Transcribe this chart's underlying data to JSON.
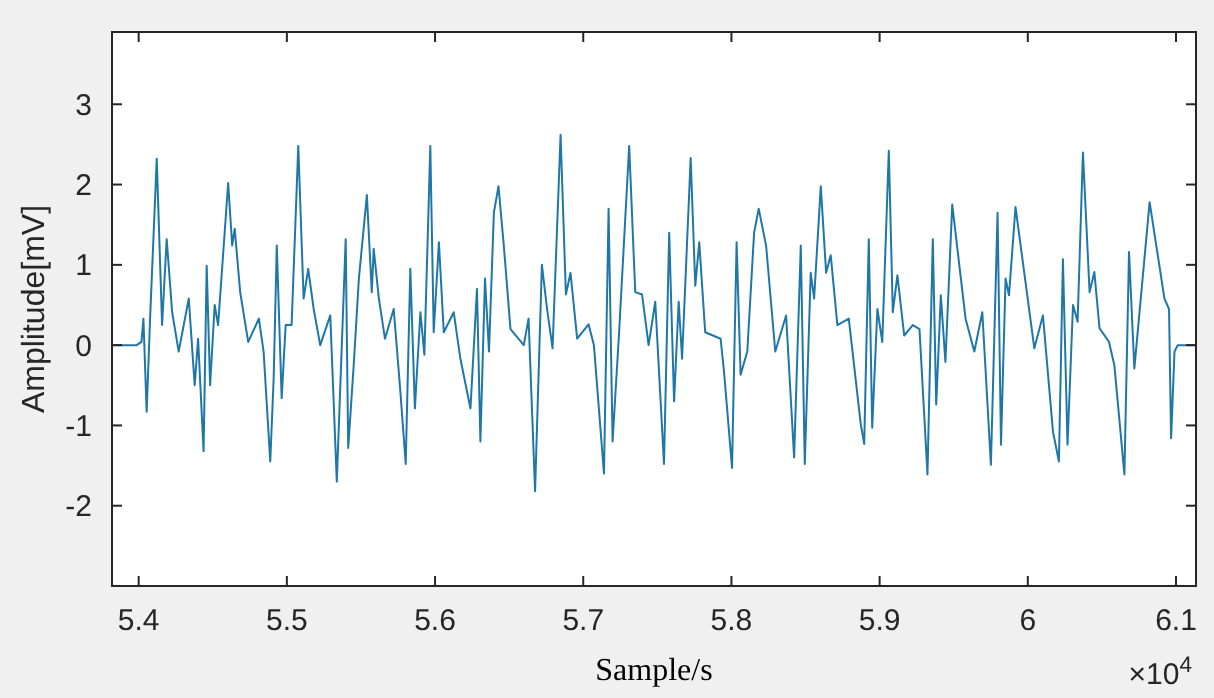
{
  "chart_data": {
    "type": "line",
    "xlabel": "Sample/s",
    "ylabel": "Amplitude[mV]",
    "annotations": [
      "×10$^{4}$"
    ],
    "xlim": [
      5.382,
      6.1135
    ],
    "ylim": [
      -3,
      3.9
    ],
    "xticks": [
      5.4,
      5.5,
      5.6,
      5.7,
      5.8,
      5.9,
      6,
      6.1
    ],
    "yticks": [
      -2,
      -1,
      0,
      1,
      2,
      3
    ],
    "grid": false,
    "marker": "none",
    "line_style": "solid",
    "series": [
      {
        "color": "#1f77a8",
        "x": [
          5.383,
          5.3986,
          5.4019,
          5.4032,
          5.4054,
          5.4077,
          5.4122,
          5.4158,
          5.4189,
          5.4226,
          5.427,
          5.4338,
          5.4378,
          5.4401,
          5.4438,
          5.4459,
          5.4482,
          5.4513,
          5.4536,
          5.4604,
          5.4631,
          5.4648,
          5.4685,
          5.4739,
          5.4811,
          5.4843,
          5.4888,
          5.4911,
          5.4932,
          5.4965,
          5.4992,
          5.5032,
          5.5077,
          5.5113,
          5.5144,
          5.5181,
          5.5225,
          5.5293,
          5.5337,
          5.5397,
          5.5414,
          5.5451,
          5.5486,
          5.554,
          5.5573,
          5.5586,
          5.5621,
          5.5662,
          5.5721,
          5.5766,
          5.5802,
          5.5833,
          5.5864,
          5.5901,
          5.5928,
          5.5968,
          5.5991,
          5.6026,
          5.6059,
          5.6126,
          5.6171,
          5.6239,
          5.6283,
          5.6306,
          5.6337,
          5.6364,
          5.6397,
          5.6428,
          5.6464,
          5.6509,
          5.6599,
          5.6631,
          5.6675,
          5.6721,
          5.6756,
          5.6793,
          5.6847,
          5.6883,
          5.6914,
          5.6959,
          5.7036,
          5.7072,
          5.714,
          5.7171,
          5.7198,
          5.7242,
          5.731,
          5.7351,
          5.7397,
          5.7441,
          5.7486,
          5.7545,
          5.758,
          5.7613,
          5.7644,
          5.7667,
          5.7725,
          5.7756,
          5.7783,
          5.7823,
          5.7927,
          5.795,
          5.8004,
          5.8035,
          5.8062,
          5.8107,
          5.8153,
          5.8184,
          5.8234,
          5.8296,
          5.8369,
          5.8423,
          5.8468,
          5.8495,
          5.8535,
          5.8558,
          5.8603,
          5.8639,
          5.867,
          5.8715,
          5.8792,
          5.8873,
          5.8896,
          5.8927,
          5.895,
          5.8985,
          5.9018,
          5.9062,
          5.9089,
          5.912,
          5.9166,
          5.9224,
          5.9269,
          5.9323,
          5.9359,
          5.9382,
          5.9413,
          5.9444,
          5.949,
          5.958,
          5.9639,
          5.9693,
          5.9751,
          5.9796,
          5.9819,
          5.985,
          5.9873,
          5.9917,
          6.0044,
          6.0102,
          6.017,
          6.021,
          6.0237,
          6.0268,
          6.0305,
          6.0336,
          6.0372,
          6.0417,
          6.0449,
          6.0484,
          6.0548,
          6.0584,
          6.0652,
          6.0683,
          6.0719,
          6.0822,
          6.0922,
          6.0953,
          6.0967,
          6.099,
          6.1012,
          6.113
        ],
        "values": [
          0,
          0,
          0.04,
          0.33,
          -0.83,
          0.33,
          2.32,
          0.25,
          1.32,
          0.41,
          -0.08,
          0.58,
          -0.5,
          0.08,
          -1.32,
          0.99,
          -0.5,
          0.5,
          0.25,
          2.02,
          1.24,
          1.45,
          0.66,
          0.04,
          0.33,
          -0.08,
          -1.45,
          -0.41,
          1.24,
          -0.66,
          0.25,
          0.25,
          2.48,
          0.58,
          0.95,
          0.45,
          0,
          0.37,
          -1.7,
          1.32,
          -1.28,
          -0.25,
          0.83,
          1.87,
          0.66,
          1.2,
          0.58,
          0.08,
          0.45,
          -0.58,
          -1.48,
          0.95,
          -0.79,
          0.41,
          -0.12,
          2.48,
          0.16,
          1.28,
          0.16,
          0.41,
          -0.17,
          -0.79,
          0.7,
          -1.2,
          0.83,
          -0.08,
          1.65,
          1.98,
          1.24,
          0.2,
          0,
          0.33,
          -1.82,
          1,
          0.45,
          -0.04,
          2.62,
          0.63,
          0.9,
          0.08,
          0.26,
          0,
          -1.6,
          1.7,
          -1.2,
          0.16,
          2.48,
          0.66,
          0.63,
          0,
          0.54,
          -1.48,
          1.4,
          -0.7,
          0.54,
          -0.17,
          2.33,
          0.74,
          1.28,
          0.16,
          0.08,
          -0.33,
          -1.53,
          1.28,
          -0.37,
          -0.08,
          1.4,
          1.7,
          1.24,
          -0.08,
          0.37,
          -1.4,
          1.24,
          -1.48,
          0.9,
          0.58,
          1.98,
          0.9,
          1.12,
          0.25,
          0.33,
          -0.99,
          -1.23,
          1.32,
          -1.03,
          0.45,
          0.04,
          2.42,
          0.41,
          0.87,
          0.12,
          0.25,
          0.2,
          -1.61,
          1.32,
          -0.74,
          0.62,
          -0.21,
          1.75,
          0.33,
          -0.08,
          0.41,
          -1.49,
          1.65,
          -1.24,
          0.83,
          0.62,
          1.72,
          -0.04,
          0.37,
          -1.08,
          -1.45,
          1.07,
          -1.24,
          0.5,
          0.29,
          2.4,
          0.66,
          0.91,
          0.21,
          0.04,
          -0.25,
          -1.61,
          1.16,
          -0.29,
          1.78,
          0.58,
          0.45,
          -1.16,
          -0.08,
          0,
          0
        ]
      }
    ]
  }
}
